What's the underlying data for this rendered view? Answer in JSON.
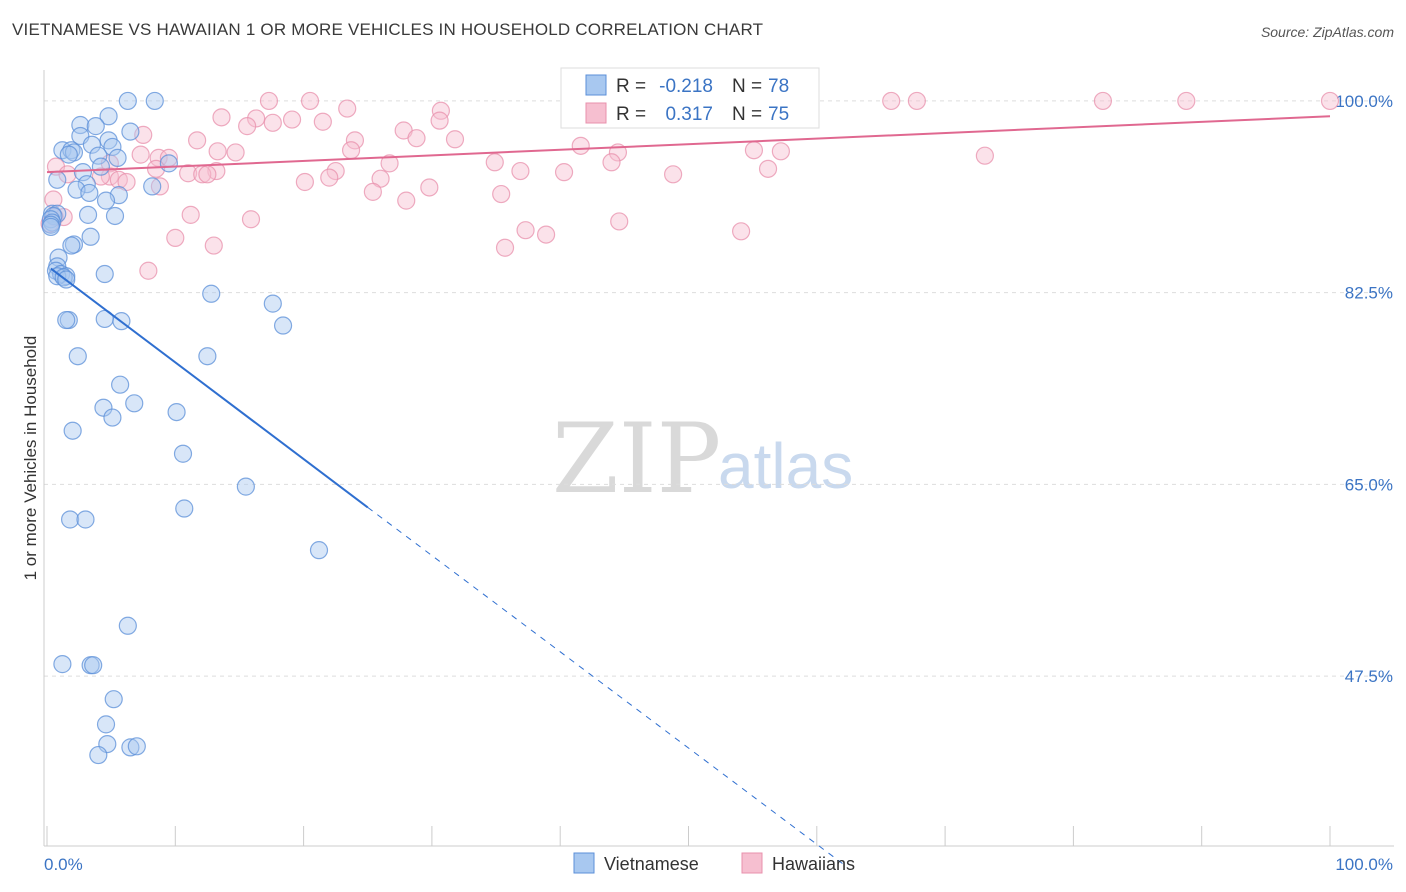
{
  "title": "VIETNAMESE VS HAWAIIAN 1 OR MORE VEHICLES IN HOUSEHOLD CORRELATION CHART",
  "source": "Source: ZipAtlas.com",
  "watermark": {
    "zip": "ZIP",
    "atlas": "atlas"
  },
  "legend_box": {
    "rows": [
      {
        "r_label": "R =",
        "r_value": "-0.218",
        "n_label": "N =",
        "n_value": "78"
      },
      {
        "r_label": "R =",
        "r_value": "0.317",
        "n_label": "N =",
        "n_value": "75"
      }
    ]
  },
  "colors": {
    "vietnamese_fill": "#a8c8f0",
    "vietnamese_stroke": "#5b8fd8",
    "vietnamese_line": "#2f6fd0",
    "hawaiian_fill": "#f6bfd0",
    "hawaiian_stroke": "#e890ac",
    "hawaiian_line": "#e06890",
    "axis_text": "#3b74c4"
  },
  "chart_data": {
    "type": "scatter",
    "title": "VIETNAMESE VS HAWAIIAN 1 OR MORE VEHICLES IN HOUSEHOLD CORRELATION CHART",
    "xlabel": "",
    "ylabel": "1 or more Vehicles in Household",
    "xlim": [
      0,
      100
    ],
    "ylim": [
      32,
      102
    ],
    "x_tick_labels": [
      "0.0%",
      "100.0%"
    ],
    "y_ticks": [
      47.5,
      65.0,
      82.5,
      100.0
    ],
    "y_tick_labels": [
      "47.5%",
      "65.0%",
      "82.5%",
      "100.0%"
    ],
    "legend": [
      "Vietnamese",
      "Hawaiians"
    ],
    "series": [
      {
        "name": "Vietnamese",
        "R": -0.218,
        "N": 78,
        "trend": {
          "x0": 0.3,
          "y0": 84.7,
          "x1": 25.0,
          "y1": 62.9,
          "dash_x1": 62.0,
          "dash_y1": 30.4
        },
        "points": [
          [
            6.3,
            100.0
          ],
          [
            8.4,
            100.0
          ],
          [
            4.8,
            98.6
          ],
          [
            2.6,
            97.8
          ],
          [
            3.8,
            97.7
          ],
          [
            6.5,
            97.2
          ],
          [
            2.6,
            96.8
          ],
          [
            4.8,
            96.4
          ],
          [
            3.5,
            96.0
          ],
          [
            5.1,
            95.8
          ],
          [
            1.2,
            95.5
          ],
          [
            1.9,
            95.5
          ],
          [
            2.1,
            95.3
          ],
          [
            1.7,
            95.1
          ],
          [
            4.0,
            95.0
          ],
          [
            5.5,
            94.8
          ],
          [
            9.5,
            94.3
          ],
          [
            4.2,
            94.0
          ],
          [
            2.8,
            93.5
          ],
          [
            0.8,
            92.8
          ],
          [
            3.1,
            92.4
          ],
          [
            8.2,
            92.2
          ],
          [
            2.3,
            91.9
          ],
          [
            3.3,
            91.6
          ],
          [
            5.6,
            91.4
          ],
          [
            4.6,
            90.9
          ],
          [
            0.4,
            89.7
          ],
          [
            0.8,
            89.7
          ],
          [
            0.5,
            89.5
          ],
          [
            3.2,
            89.6
          ],
          [
            5.3,
            89.5
          ],
          [
            0.3,
            89.2
          ],
          [
            0.4,
            88.9
          ],
          [
            0.3,
            88.7
          ],
          [
            0.3,
            88.5
          ],
          [
            3.4,
            87.6
          ],
          [
            2.1,
            86.9
          ],
          [
            1.9,
            86.8
          ],
          [
            0.9,
            85.7
          ],
          [
            0.8,
            84.9
          ],
          [
            0.7,
            84.5
          ],
          [
            1.1,
            84.2
          ],
          [
            4.5,
            84.2
          ],
          [
            1.5,
            84.0
          ],
          [
            0.8,
            84.0
          ],
          [
            1.3,
            83.9
          ],
          [
            1.5,
            83.7
          ],
          [
            12.8,
            82.4
          ],
          [
            17.6,
            81.5
          ],
          [
            1.7,
            80.0
          ],
          [
            1.5,
            80.0
          ],
          [
            4.5,
            80.1
          ],
          [
            5.8,
            79.9
          ],
          [
            18.4,
            79.5
          ],
          [
            2.4,
            76.7
          ],
          [
            12.5,
            76.7
          ],
          [
            5.7,
            74.1
          ],
          [
            6.8,
            72.4
          ],
          [
            4.4,
            72.0
          ],
          [
            10.1,
            71.6
          ],
          [
            5.1,
            71.1
          ],
          [
            2.0,
            69.9
          ],
          [
            10.6,
            67.8
          ],
          [
            15.5,
            64.8
          ],
          [
            10.7,
            62.8
          ],
          [
            1.8,
            61.8
          ],
          [
            3.0,
            61.8
          ],
          [
            21.2,
            59.0
          ],
          [
            6.3,
            52.1
          ],
          [
            1.2,
            48.6
          ],
          [
            3.4,
            48.5
          ],
          [
            3.6,
            48.5
          ],
          [
            5.2,
            45.4
          ],
          [
            4.6,
            43.1
          ],
          [
            4.7,
            41.3
          ],
          [
            6.5,
            41.0
          ],
          [
            7.0,
            41.1
          ],
          [
            4.0,
            40.3
          ]
        ]
      },
      {
        "name": "Hawaiians",
        "R": 0.317,
        "N": 75,
        "trend": {
          "x0": 0.0,
          "y0": 93.5,
          "x1": 100.0,
          "y1": 98.6
        },
        "points": [
          [
            17.3,
            100.0
          ],
          [
            20.5,
            100.0
          ],
          [
            65.8,
            100.0
          ],
          [
            67.8,
            100.0
          ],
          [
            82.3,
            100.0
          ],
          [
            88.8,
            100.0
          ],
          [
            100.0,
            100.0
          ],
          [
            23.4,
            99.3
          ],
          [
            30.7,
            99.1
          ],
          [
            30.6,
            98.2
          ],
          [
            13.6,
            98.5
          ],
          [
            16.3,
            98.4
          ],
          [
            17.6,
            98.0
          ],
          [
            19.1,
            98.3
          ],
          [
            21.5,
            98.1
          ],
          [
            15.6,
            97.7
          ],
          [
            27.8,
            97.3
          ],
          [
            7.5,
            96.9
          ],
          [
            11.7,
            96.4
          ],
          [
            24.0,
            96.4
          ],
          [
            28.8,
            96.6
          ],
          [
            31.8,
            96.5
          ],
          [
            41.6,
            95.9
          ],
          [
            14.7,
            95.3
          ],
          [
            13.3,
            95.4
          ],
          [
            23.7,
            95.5
          ],
          [
            44.5,
            95.3
          ],
          [
            55.1,
            95.5
          ],
          [
            57.2,
            95.4
          ],
          [
            73.1,
            95.0
          ],
          [
            7.3,
            95.1
          ],
          [
            8.7,
            94.8
          ],
          [
            9.5,
            94.8
          ],
          [
            26.7,
            94.3
          ],
          [
            34.9,
            94.4
          ],
          [
            44.0,
            94.4
          ],
          [
            4.9,
            94.3
          ],
          [
            0.7,
            94.0
          ],
          [
            8.5,
            93.8
          ],
          [
            13.2,
            93.6
          ],
          [
            22.5,
            93.6
          ],
          [
            36.9,
            93.6
          ],
          [
            40.3,
            93.5
          ],
          [
            1.6,
            93.3
          ],
          [
            4.9,
            93.1
          ],
          [
            11.0,
            93.4
          ],
          [
            12.1,
            93.3
          ],
          [
            12.5,
            93.3
          ],
          [
            4.2,
            93.1
          ],
          [
            22.0,
            93.0
          ],
          [
            26.0,
            92.9
          ],
          [
            48.8,
            93.3
          ],
          [
            5.6,
            92.8
          ],
          [
            6.2,
            92.6
          ],
          [
            20.1,
            92.6
          ],
          [
            8.8,
            92.2
          ],
          [
            0.5,
            91.0
          ],
          [
            25.4,
            91.7
          ],
          [
            29.8,
            92.1
          ],
          [
            35.4,
            91.5
          ],
          [
            28.0,
            90.9
          ],
          [
            56.2,
            93.8
          ],
          [
            11.2,
            89.6
          ],
          [
            0.6,
            89.4
          ],
          [
            1.3,
            89.4
          ],
          [
            15.9,
            89.2
          ],
          [
            54.1,
            88.1
          ],
          [
            44.6,
            89.0
          ],
          [
            37.3,
            88.2
          ],
          [
            38.9,
            87.8
          ],
          [
            10.0,
            87.5
          ],
          [
            13.0,
            86.8
          ],
          [
            35.7,
            86.6
          ],
          [
            7.9,
            84.5
          ],
          [
            0.2,
            88.8
          ]
        ]
      }
    ]
  }
}
